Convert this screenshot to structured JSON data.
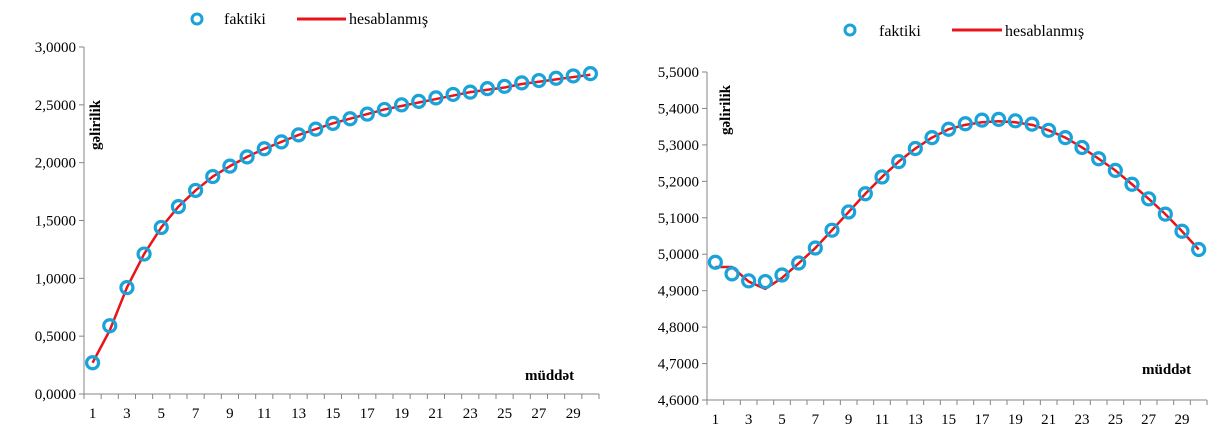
{
  "chart_data": [
    {
      "type": "line",
      "x": [
        1,
        2,
        3,
        4,
        5,
        6,
        7,
        8,
        9,
        10,
        11,
        12,
        13,
        14,
        15,
        16,
        17,
        18,
        19,
        20,
        21,
        22,
        23,
        24,
        25,
        26,
        27,
        28,
        29,
        30
      ],
      "series": [
        {
          "name": "faktiki",
          "style": "markers",
          "color": "#1aa3d9",
          "values": [
            0.27,
            0.59,
            0.92,
            1.21,
            1.44,
            1.62,
            1.76,
            1.88,
            1.97,
            2.05,
            2.12,
            2.18,
            2.24,
            2.29,
            2.34,
            2.38,
            2.42,
            2.46,
            2.5,
            2.53,
            2.56,
            2.59,
            2.61,
            2.64,
            2.66,
            2.69,
            2.71,
            2.73,
            2.75,
            2.77
          ]
        },
        {
          "name": "hesablanmış",
          "style": "line",
          "color": "#e8141c",
          "values": [
            0.27,
            0.55,
            0.92,
            1.21,
            1.44,
            1.62,
            1.76,
            1.88,
            1.97,
            2.05,
            2.12,
            2.18,
            2.24,
            2.29,
            2.34,
            2.38,
            2.42,
            2.46,
            2.49,
            2.52,
            2.55,
            2.58,
            2.61,
            2.63,
            2.65,
            2.68,
            2.7,
            2.72,
            2.74,
            2.76
          ]
        }
      ],
      "xlabel": "müddət",
      "ylabel": "gəlirilik",
      "ylim": [
        0,
        3
      ],
      "y_ticks": [
        "0,0000",
        "0,5000",
        "1,0000",
        "1,5000",
        "2,0000",
        "2,5000",
        "3,0000"
      ],
      "x_ticks": [
        "1",
        "3",
        "5",
        "7",
        "9",
        "11",
        "13",
        "15",
        "17",
        "19",
        "21",
        "23",
        "25",
        "27",
        "29"
      ],
      "grid": false,
      "legend_position": "top"
    },
    {
      "type": "line",
      "x": [
        1,
        2,
        3,
        4,
        5,
        6,
        7,
        8,
        9,
        10,
        11,
        12,
        13,
        14,
        15,
        16,
        17,
        18,
        19,
        20,
        21,
        22,
        23,
        24,
        25,
        26,
        27,
        28,
        29,
        30
      ],
      "series": [
        {
          "name": "faktiki",
          "style": "markers",
          "color": "#1aa3d9",
          "values": [
            4.978,
            4.946,
            4.927,
            4.925,
            4.943,
            4.976,
            5.017,
            5.066,
            5.116,
            5.166,
            5.212,
            5.254,
            5.29,
            5.32,
            5.343,
            5.358,
            5.368,
            5.37,
            5.366,
            5.357,
            5.34,
            5.32,
            5.293,
            5.262,
            5.23,
            5.192,
            5.152,
            5.11,
            5.063,
            5.013
          ]
        },
        {
          "name": "hesablanmış",
          "style": "line",
          "color": "#e8141c",
          "values": [
            4.965,
            4.965,
            4.925,
            4.905,
            4.935,
            4.975,
            5.017,
            5.066,
            5.116,
            5.166,
            5.212,
            5.254,
            5.29,
            5.32,
            5.343,
            5.355,
            5.362,
            5.365,
            5.362,
            5.355,
            5.34,
            5.32,
            5.293,
            5.262,
            5.23,
            5.192,
            5.152,
            5.11,
            5.063,
            5.013
          ]
        }
      ],
      "xlabel": "müddət",
      "ylabel": "gəlirilik",
      "ylim": [
        4.6,
        5.5
      ],
      "y_ticks": [
        "4,6000",
        "4,7000",
        "4,8000",
        "4,9000",
        "5,0000",
        "5,1000",
        "5,2000",
        "5,3000",
        "5,4000",
        "5,5000"
      ],
      "x_ticks": [
        "1",
        "3",
        "5",
        "7",
        "9",
        "11",
        "13",
        "15",
        "17",
        "19",
        "21",
        "23",
        "25",
        "27",
        "29"
      ],
      "grid": false,
      "legend_position": "top"
    }
  ]
}
